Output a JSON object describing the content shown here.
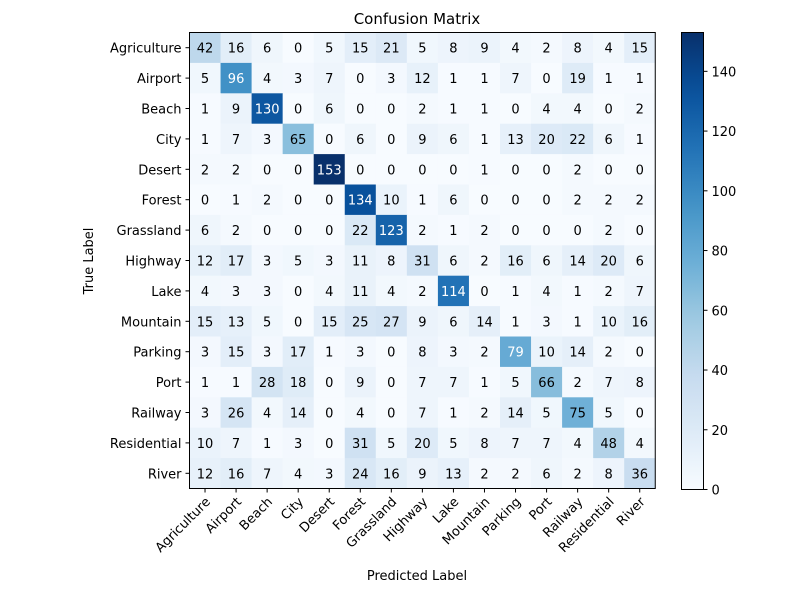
{
  "chart_data": {
    "type": "heatmap",
    "title": "Confusion Matrix",
    "xlabel": "Predicted Label",
    "ylabel": "True Label",
    "row_labels": [
      "Agriculture",
      "Airport",
      "Beach",
      "City",
      "Desert",
      "Forest",
      "Grassland",
      "Highway",
      "Lake",
      "Mountain",
      "Parking",
      "Port",
      "Railway",
      "Residential",
      "River"
    ],
    "col_labels": [
      "Agriculture",
      "Airport",
      "Beach",
      "City",
      "Desert",
      "Forest",
      "Grassland",
      "Highway",
      "Lake",
      "Mountain",
      "Parking",
      "Port",
      "Railway",
      "Residential",
      "River"
    ],
    "matrix": [
      [
        42,
        16,
        6,
        0,
        5,
        15,
        21,
        5,
        8,
        9,
        4,
        2,
        8,
        4,
        15
      ],
      [
        5,
        96,
        4,
        3,
        7,
        0,
        3,
        12,
        1,
        1,
        7,
        0,
        19,
        1,
        1
      ],
      [
        1,
        9,
        130,
        0,
        6,
        0,
        0,
        2,
        1,
        1,
        0,
        4,
        4,
        0,
        2
      ],
      [
        1,
        7,
        3,
        65,
        0,
        6,
        0,
        9,
        6,
        1,
        13,
        20,
        22,
        6,
        1
      ],
      [
        2,
        2,
        0,
        0,
        153,
        0,
        0,
        0,
        0,
        1,
        0,
        0,
        2,
        0,
        0
      ],
      [
        0,
        1,
        2,
        0,
        0,
        134,
        10,
        1,
        6,
        0,
        0,
        0,
        2,
        2,
        2
      ],
      [
        6,
        2,
        0,
        0,
        0,
        22,
        123,
        2,
        1,
        2,
        0,
        0,
        0,
        2,
        0
      ],
      [
        12,
        17,
        3,
        5,
        3,
        11,
        8,
        31,
        6,
        2,
        16,
        6,
        14,
        20,
        6
      ],
      [
        4,
        3,
        3,
        0,
        4,
        11,
        4,
        2,
        114,
        0,
        1,
        4,
        1,
        2,
        7
      ],
      [
        15,
        13,
        5,
        0,
        15,
        25,
        27,
        9,
        6,
        14,
        1,
        3,
        1,
        10,
        16
      ],
      [
        3,
        15,
        3,
        17,
        1,
        3,
        0,
        8,
        3,
        2,
        79,
        10,
        14,
        2,
        0
      ],
      [
        1,
        1,
        28,
        18,
        0,
        9,
        0,
        7,
        7,
        1,
        5,
        66,
        2,
        7,
        8
      ],
      [
        3,
        26,
        4,
        14,
        0,
        4,
        0,
        7,
        1,
        2,
        14,
        5,
        75,
        5,
        0
      ],
      [
        10,
        7,
        1,
        3,
        0,
        31,
        5,
        20,
        5,
        8,
        7,
        7,
        4,
        48,
        4
      ],
      [
        12,
        16,
        7,
        4,
        3,
        24,
        16,
        9,
        13,
        2,
        2,
        6,
        2,
        8,
        36
      ]
    ],
    "vmin": 0,
    "vmax": 153,
    "colormap": "Blues",
    "colorbar_ticks": [
      "0",
      "20",
      "40",
      "60",
      "80",
      "100",
      "120",
      "140"
    ],
    "colorbar_tick_values": [
      0,
      20,
      40,
      60,
      80,
      100,
      120,
      140
    ],
    "grid": false
  }
}
